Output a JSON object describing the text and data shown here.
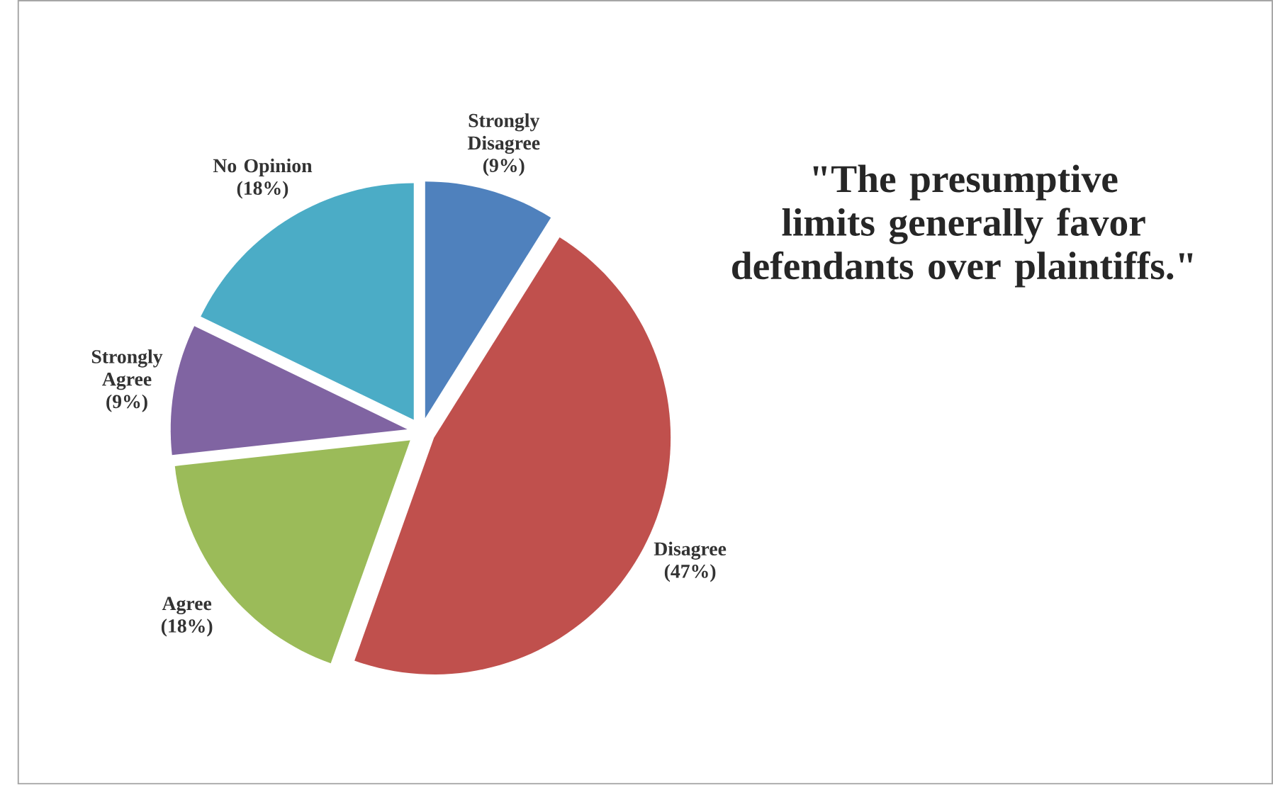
{
  "chart_data": {
    "type": "pie",
    "title": "\"The presumptive limits generally favor defendants over plaintiffs.\"",
    "categories": [
      "Strongly Disagree",
      "Disagree",
      "Agree",
      "Strongly Agree",
      "No Opinion"
    ],
    "values": [
      9,
      47,
      18,
      9,
      18
    ],
    "value_labels": [
      "(9%)",
      "(47%)",
      "(18%)",
      "(9%)",
      "(18%)"
    ],
    "colors": [
      "#4f81bd",
      "#c0504d",
      "#9bbb59",
      "#8064a2",
      "#4bacc6"
    ]
  }
}
